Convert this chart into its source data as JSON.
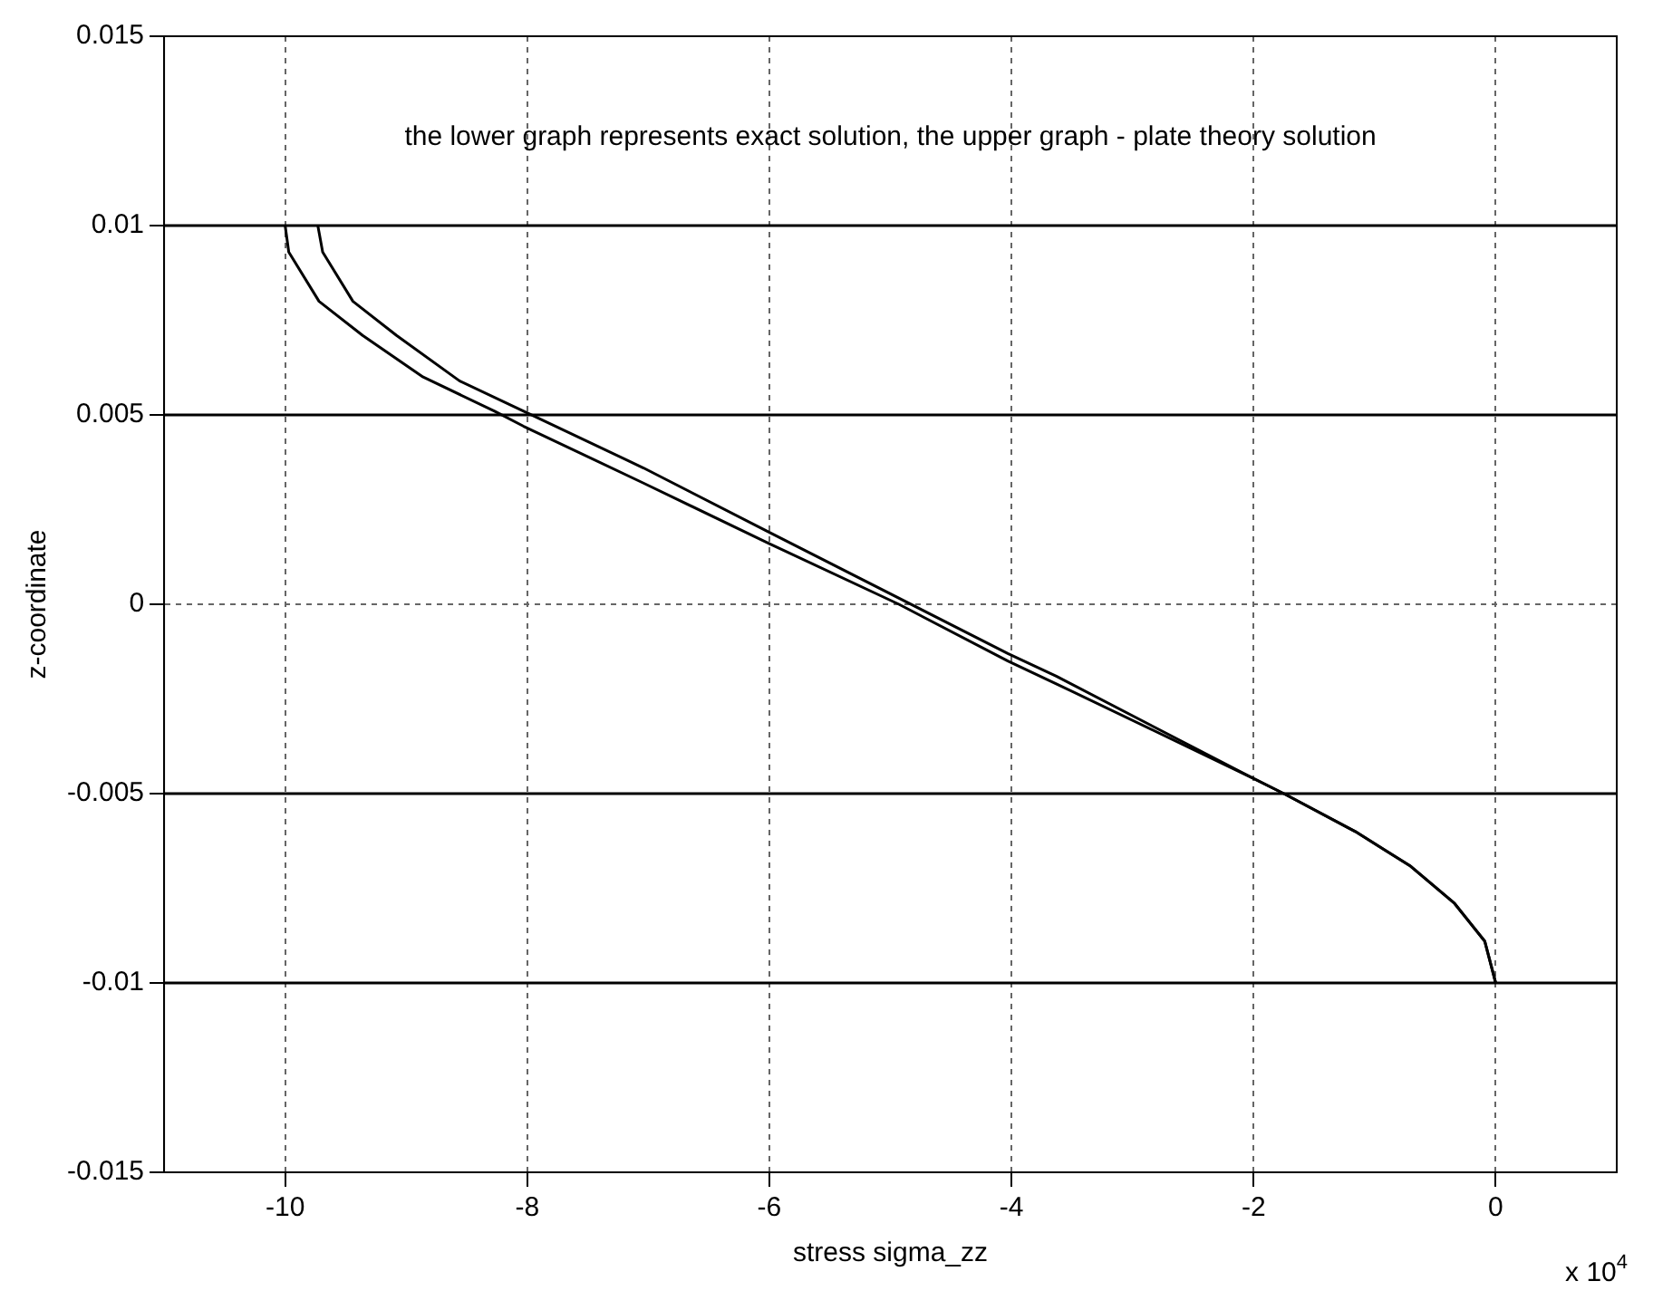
{
  "chart_data": {
    "type": "line",
    "xlabel": "stress sigma_zz",
    "ylabel": "z-coordinate",
    "annotations": [
      "the lower graph represents exact solution, the upper graph - plate theory solution",
      "x 10$^{4}$"
    ],
    "xlim": [
      -11,
      1
    ],
    "xticks": [
      -10,
      -8,
      -6,
      -4,
      -2,
      0
    ],
    "ylim": [
      -0.015,
      0.015
    ],
    "yticks": [
      -0.015,
      -0.01,
      -0.005,
      0,
      0.005,
      0.01,
      0.015
    ],
    "grid": true,
    "legend": false,
    "marker": "none",
    "line_style": "solid",
    "series": [
      {
        "color": "#000000",
        "x": [
          -10.0,
          -9.97,
          -9.72,
          -9.36,
          -8.86,
          -8.27,
          -8.03,
          -7.04,
          -6.0,
          -4.93,
          -4.03,
          -3.63,
          -2.0,
          -1.75,
          -1.16,
          -0.71,
          -0.34,
          -0.09,
          0
        ],
        "values": [
          0.01,
          0.0093,
          0.008,
          0.0071,
          0.006,
          0.0051,
          0.0047,
          0.0032,
          0.0016,
          0,
          -0.0015,
          -0.0021,
          -0.0046,
          -0.005,
          -0.006,
          -0.0069,
          -0.0079,
          -0.0089,
          -0.01
        ]
      },
      {
        "color": "#000000",
        "x": [
          -9.73,
          -9.69,
          -9.44,
          -9.08,
          -8.56,
          -8.03,
          -7.04,
          -6.0,
          -4.03,
          -3.63,
          -2.0,
          -1.75,
          -1.16,
          -0.71,
          -0.34,
          -0.09,
          0
        ],
        "values": [
          0.01,
          0.0093,
          0.008,
          0.0071,
          0.0059,
          0.0051,
          0.0036,
          0.0019,
          -0.0013,
          -0.0019,
          -0.0046,
          -0.005,
          -0.006,
          -0.0069,
          -0.0079,
          -0.0089,
          -0.01
        ]
      },
      {
        "color": "#000000",
        "x": [
          -11,
          1
        ],
        "values": [
          0.01,
          0.01
        ]
      },
      {
        "color": "#000000",
        "x": [
          -11,
          1
        ],
        "values": [
          0.005,
          0.005
        ]
      },
      {
        "color": "#000000",
        "x": [
          -11,
          1
        ],
        "values": [
          -0.005,
          -0.005
        ]
      },
      {
        "color": "#000000",
        "x": [
          -11,
          1
        ],
        "values": [
          -0.01,
          -0.01
        ]
      }
    ]
  }
}
